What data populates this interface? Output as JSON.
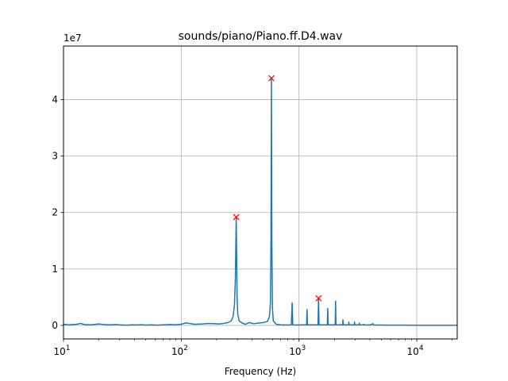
{
  "chart_data": {
    "type": "line",
    "title": "sounds/piano/Piano.ff.D4.wav",
    "xlabel": "Frequency (Hz)",
    "ylabel": "",
    "x_scale": "log",
    "xlim": [
      10,
      22050
    ],
    "ylim": [
      -2400000,
      49500000
    ],
    "y_offset_label": "1e7",
    "grid": true,
    "x_ticks": [
      {
        "value": 10,
        "base": "10",
        "exp": "1"
      },
      {
        "value": 100,
        "base": "10",
        "exp": "2"
      },
      {
        "value": 1000,
        "base": "10",
        "exp": "3"
      },
      {
        "value": 10000,
        "base": "10",
        "exp": "4"
      }
    ],
    "y_ticks": [
      {
        "value": 0,
        "label": "0"
      },
      {
        "value": 10000000,
        "label": "1"
      },
      {
        "value": 20000000,
        "label": "2"
      },
      {
        "value": 30000000,
        "label": "3"
      },
      {
        "value": 40000000,
        "label": "4"
      }
    ],
    "series": [
      {
        "color": "#1f77b4",
        "points": [
          [
            10,
            200000
          ],
          [
            11,
            100000
          ],
          [
            12,
            150000
          ],
          [
            13,
            200000
          ],
          [
            14,
            350000
          ],
          [
            15,
            150000
          ],
          [
            17,
            100000
          ],
          [
            19,
            200000
          ],
          [
            20,
            250000
          ],
          [
            22,
            150000
          ],
          [
            25,
            100000
          ],
          [
            28,
            150000
          ],
          [
            30,
            100000
          ],
          [
            34,
            50000
          ],
          [
            38,
            100000
          ],
          [
            42,
            80000
          ],
          [
            46,
            120000
          ],
          [
            50,
            60000
          ],
          [
            56,
            90000
          ],
          [
            62,
            50000
          ],
          [
            70,
            100000
          ],
          [
            80,
            150000
          ],
          [
            90,
            120000
          ],
          [
            100,
            200000
          ],
          [
            110,
            450000
          ],
          [
            120,
            300000
          ],
          [
            130,
            200000
          ],
          [
            150,
            250000
          ],
          [
            170,
            350000
          ],
          [
            190,
            300000
          ],
          [
            210,
            250000
          ],
          [
            230,
            350000
          ],
          [
            250,
            500000
          ],
          [
            265,
            800000
          ],
          [
            275,
            1500000
          ],
          [
            283,
            3500000
          ],
          [
            288,
            8000000
          ],
          [
            291,
            15000000
          ],
          [
            293,
            19200000
          ],
          [
            295,
            14000000
          ],
          [
            298,
            5000000
          ],
          [
            302,
            2000000
          ],
          [
            310,
            800000
          ],
          [
            330,
            400000
          ],
          [
            350,
            200000
          ],
          [
            380,
            500000
          ],
          [
            410,
            300000
          ],
          [
            450,
            400000
          ],
          [
            500,
            500000
          ],
          [
            540,
            700000
          ],
          [
            560,
            1500000
          ],
          [
            572,
            4000000
          ],
          [
            578,
            15000000
          ],
          [
            583,
            43800000
          ],
          [
            588,
            15000000
          ],
          [
            595,
            3000000
          ],
          [
            605,
            800000
          ],
          [
            640,
            200000
          ],
          [
            700,
            100000
          ],
          [
            790,
            80000
          ],
          [
            860,
            100000
          ],
          [
            875,
            4000000
          ],
          [
            885,
            100000
          ],
          [
            1000,
            80000
          ],
          [
            1160,
            100000
          ],
          [
            1170,
            2800000
          ],
          [
            1180,
            100000
          ],
          [
            1450,
            100000
          ],
          [
            1465,
            4800000
          ],
          [
            1480,
            100000
          ],
          [
            1740,
            100000
          ],
          [
            1755,
            3000000
          ],
          [
            1770,
            100000
          ],
          [
            2030,
            100000
          ],
          [
            2045,
            4300000
          ],
          [
            2060,
            100000
          ],
          [
            2350,
            100000
          ],
          [
            2360,
            1000000
          ],
          [
            2375,
            100000
          ],
          [
            2640,
            100000
          ],
          [
            2650,
            600000
          ],
          [
            2665,
            100000
          ],
          [
            2950,
            100000
          ],
          [
            2960,
            600000
          ],
          [
            2975,
            100000
          ],
          [
            3240,
            100000
          ],
          [
            3250,
            400000
          ],
          [
            3265,
            100000
          ],
          [
            3550,
            100000
          ],
          [
            3560,
            200000
          ],
          [
            3575,
            100000
          ],
          [
            4000,
            80000
          ],
          [
            4250,
            300000
          ],
          [
            4270,
            80000
          ],
          [
            5000,
            60000
          ],
          [
            6000,
            50000
          ],
          [
            8000,
            40000
          ],
          [
            10000,
            30000
          ],
          [
            12000,
            30000
          ],
          [
            15000,
            20000
          ],
          [
            18000,
            20000
          ],
          [
            22050,
            20000
          ]
        ]
      }
    ],
    "markers": {
      "symbol": "x",
      "color": "#ff0000",
      "points": [
        [
          293,
          19200000
        ],
        [
          583,
          43800000
        ],
        [
          1465,
          4800000
        ]
      ]
    }
  }
}
